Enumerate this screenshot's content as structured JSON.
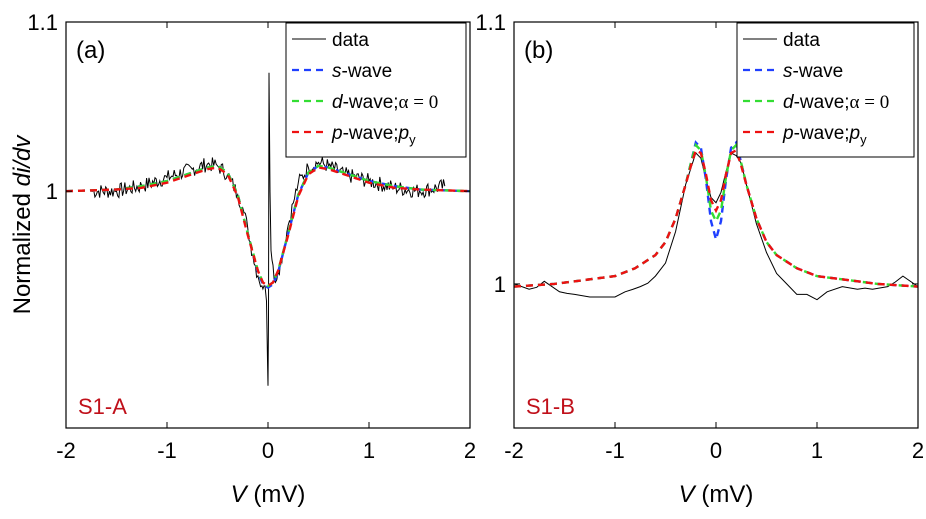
{
  "figure": {
    "ylabel_prefix": "Normalized ",
    "ylabel_italic": "di/dv",
    "colors": {
      "data": "#000000",
      "s_wave": "#1f3fff",
      "d_wave": "#33dd33",
      "p_wave": "#ee1111",
      "sample_tag": "#c0101a"
    }
  },
  "chart_data": [
    {
      "type": "line",
      "panel": "(a)",
      "sample": "S1-A",
      "xlabel_var": "V",
      "xlabel_unit": " (mV)",
      "xlim": [
        -2,
        2
      ],
      "ylim": [
        0.86,
        1.1
      ],
      "x_ticks": [
        "-2",
        "-1",
        "0",
        "1",
        "2"
      ],
      "y_ticks": [
        "1",
        "1.1"
      ],
      "legend": [
        {
          "key": "data",
          "parts": [
            [
              "data",
              "n"
            ]
          ],
          "style": "solid"
        },
        {
          "key": "s_wave",
          "parts": [
            [
              "s",
              "i"
            ],
            [
              "-wave",
              "n"
            ]
          ],
          "style": "dashed"
        },
        {
          "key": "d_wave",
          "parts": [
            [
              "d",
              "i"
            ],
            [
              "-wave;",
              "n"
            ],
            [
              "α = 0",
              "s"
            ]
          ],
          "style": "dashed"
        },
        {
          "key": "p_wave",
          "parts": [
            [
              "p",
              "i"
            ],
            [
              "-wave;",
              "n"
            ],
            [
              "p",
              "i"
            ],
            [
              "y",
              "sub"
            ]
          ],
          "style": "dashed"
        }
      ],
      "series": [
        {
          "name": "data",
          "key": "data",
          "kind": "noisy",
          "x": [
            -1.75,
            -1.5,
            -1.25,
            -1.0,
            -0.75,
            -0.6,
            -0.5,
            -0.4,
            -0.3,
            -0.25,
            -0.2,
            -0.15,
            -0.1,
            -0.06,
            -0.03,
            -0.015,
            -0.005,
            0.0,
            0.005,
            0.01,
            0.02,
            0.03,
            0.06,
            0.1,
            0.15,
            0.2,
            0.25,
            0.3,
            0.4,
            0.5,
            0.6,
            0.75,
            1.0,
            1.25,
            1.5,
            1.75
          ],
          "y": [
            1.0,
            1.0,
            1.003,
            1.008,
            1.013,
            1.016,
            1.015,
            1.01,
            0.998,
            0.99,
            0.978,
            0.962,
            0.95,
            0.944,
            0.944,
            0.935,
            0.9,
            0.885,
            0.925,
            1.07,
            1.0,
            0.965,
            0.948,
            0.952,
            0.965,
            0.98,
            0.993,
            1.005,
            1.014,
            1.017,
            1.015,
            1.01,
            1.006,
            1.002,
            1.0,
            1.003
          ]
        },
        {
          "name": "s-wave",
          "key": "s_wave",
          "x": [
            -2.0,
            -1.5,
            -1.25,
            -1.0,
            -0.8,
            -0.6,
            -0.5,
            -0.4,
            -0.3,
            -0.2,
            -0.1,
            -0.05,
            0.0,
            0.05,
            0.1,
            0.2,
            0.3,
            0.4,
            0.5,
            0.6,
            0.8,
            1.0,
            1.25,
            1.5,
            2.0
          ],
          "y": [
            1.0,
            1.001,
            1.003,
            1.006,
            1.01,
            1.014,
            1.015,
            1.011,
            0.998,
            0.975,
            0.952,
            0.945,
            0.943,
            0.945,
            0.952,
            0.975,
            0.998,
            1.011,
            1.015,
            1.014,
            1.01,
            1.006,
            1.003,
            1.001,
            1.0
          ]
        },
        {
          "name": "d-wave;α = 0",
          "key": "d_wave",
          "x": [
            -2.0,
            -1.5,
            -1.25,
            -1.0,
            -0.8,
            -0.6,
            -0.5,
            -0.4,
            -0.3,
            -0.2,
            -0.1,
            -0.05,
            0.0,
            0.05,
            0.1,
            0.2,
            0.3,
            0.4,
            0.5,
            0.6,
            0.8,
            1.0,
            1.25,
            1.5,
            2.0
          ],
          "y": [
            1.0,
            1.001,
            1.003,
            1.006,
            1.01,
            1.014,
            1.015,
            1.011,
            0.998,
            0.975,
            0.953,
            0.946,
            0.944,
            0.946,
            0.953,
            0.975,
            0.998,
            1.011,
            1.015,
            1.014,
            1.01,
            1.006,
            1.003,
            1.001,
            1.0
          ]
        },
        {
          "name": "p-wave;py",
          "key": "p_wave",
          "x": [
            -2.0,
            -1.5,
            -1.25,
            -1.0,
            -0.8,
            -0.6,
            -0.5,
            -0.4,
            -0.3,
            -0.2,
            -0.1,
            -0.05,
            0.0,
            0.05,
            0.1,
            0.2,
            0.3,
            0.4,
            0.5,
            0.6,
            0.8,
            1.0,
            1.25,
            1.5,
            2.0
          ],
          "y": [
            1.0,
            1.001,
            1.002,
            1.005,
            1.009,
            1.013,
            1.014,
            1.01,
            0.997,
            0.974,
            0.953,
            0.946,
            0.944,
            0.946,
            0.953,
            0.974,
            0.997,
            1.01,
            1.014,
            1.013,
            1.009,
            1.005,
            1.002,
            1.001,
            1.0
          ]
        }
      ]
    },
    {
      "type": "line",
      "panel": "(b)",
      "sample": "S1-B",
      "xlabel_var": "V",
      "xlabel_unit": " (mV)",
      "xlim": [
        -2,
        2
      ],
      "ylim": [
        0.945,
        1.1
      ],
      "x_ticks": [
        "-2",
        "-1",
        "0",
        "1",
        "2"
      ],
      "y_ticks": [
        "1",
        "1.1"
      ],
      "legend": [
        {
          "key": "data",
          "parts": [
            [
              "data",
              "n"
            ]
          ],
          "style": "solid"
        },
        {
          "key": "s_wave",
          "parts": [
            [
              "s",
              "i"
            ],
            [
              "-wave",
              "n"
            ]
          ],
          "style": "dashed"
        },
        {
          "key": "d_wave",
          "parts": [
            [
              "d",
              "i"
            ],
            [
              "-wave;",
              "n"
            ],
            [
              "α = 0",
              "s"
            ]
          ],
          "style": "dashed"
        },
        {
          "key": "p_wave",
          "parts": [
            [
              "p",
              "i"
            ],
            [
              "-wave;",
              "n"
            ],
            [
              "p",
              "i"
            ],
            [
              "y",
              "sub"
            ]
          ],
          "style": "dashed"
        }
      ],
      "series": [
        {
          "name": "data",
          "key": "data",
          "kind": "noisy",
          "x": [
            -2.0,
            -1.85,
            -1.7,
            -1.55,
            -1.4,
            -1.25,
            -1.1,
            -1.0,
            -0.9,
            -0.75,
            -0.6,
            -0.5,
            -0.4,
            -0.3,
            -0.2,
            -0.15,
            -0.1,
            -0.05,
            0.0,
            0.05,
            0.1,
            0.15,
            0.2,
            0.25,
            0.3,
            0.4,
            0.5,
            0.6,
            0.7,
            0.8,
            0.9,
            1.0,
            1.1,
            1.25,
            1.4,
            1.55,
            1.7,
            1.85,
            2.0
          ],
          "y": [
            1.0,
            0.998,
            1.001,
            0.997,
            0.996,
            0.995,
            0.995,
            0.995,
            0.997,
            0.999,
            1.003,
            1.008,
            1.02,
            1.038,
            1.05,
            1.048,
            1.04,
            1.033,
            1.031,
            1.035,
            1.043,
            1.05,
            1.049,
            1.046,
            1.038,
            1.023,
            1.012,
            1.004,
            1.0,
            0.996,
            0.996,
            0.994,
            0.997,
            0.999,
            0.998,
            0.998,
            0.999,
            1.003,
            0.999
          ]
        },
        {
          "name": "s-wave",
          "key": "s_wave",
          "x": [
            -2.0,
            -1.6,
            -1.2,
            -1.0,
            -0.8,
            -0.6,
            -0.5,
            -0.4,
            -0.3,
            -0.25,
            -0.2,
            -0.15,
            -0.1,
            -0.05,
            0.0,
            0.05,
            0.1,
            0.15,
            0.2,
            0.25,
            0.3,
            0.4,
            0.5,
            0.6,
            0.8,
            1.0,
            1.2,
            1.6,
            2.0
          ],
          "y": [
            0.999,
            1.0,
            1.002,
            1.003,
            1.006,
            1.011,
            1.016,
            1.025,
            1.038,
            1.046,
            1.054,
            1.052,
            1.04,
            1.024,
            1.017,
            1.024,
            1.04,
            1.052,
            1.054,
            1.046,
            1.038,
            1.025,
            1.016,
            1.011,
            1.006,
            1.003,
            1.002,
            1.0,
            0.999
          ]
        },
        {
          "name": "d-wave;α = 0",
          "key": "d_wave",
          "x": [
            -2.0,
            -1.6,
            -1.2,
            -1.0,
            -0.8,
            -0.6,
            -0.5,
            -0.4,
            -0.3,
            -0.25,
            -0.2,
            -0.15,
            -0.1,
            -0.05,
            0.0,
            0.05,
            0.1,
            0.15,
            0.2,
            0.25,
            0.3,
            0.4,
            0.5,
            0.6,
            0.8,
            1.0,
            1.2,
            1.6,
            2.0
          ],
          "y": [
            0.999,
            1.0,
            1.002,
            1.003,
            1.006,
            1.011,
            1.016,
            1.025,
            1.038,
            1.046,
            1.053,
            1.051,
            1.041,
            1.028,
            1.024,
            1.028,
            1.041,
            1.051,
            1.053,
            1.046,
            1.038,
            1.025,
            1.016,
            1.011,
            1.006,
            1.003,
            1.002,
            1.0,
            0.999
          ]
        },
        {
          "name": "p-wave;py",
          "key": "p_wave",
          "x": [
            -2.0,
            -1.6,
            -1.2,
            -1.0,
            -0.8,
            -0.6,
            -0.5,
            -0.4,
            -0.3,
            -0.25,
            -0.2,
            -0.15,
            -0.1,
            -0.05,
            0.0,
            0.05,
            0.1,
            0.15,
            0.2,
            0.25,
            0.3,
            0.4,
            0.5,
            0.6,
            0.8,
            1.0,
            1.2,
            1.6,
            2.0
          ],
          "y": [
            0.999,
            1.0,
            1.002,
            1.003,
            1.006,
            1.011,
            1.016,
            1.025,
            1.038,
            1.045,
            1.051,
            1.05,
            1.042,
            1.032,
            1.028,
            1.032,
            1.042,
            1.05,
            1.051,
            1.045,
            1.038,
            1.025,
            1.016,
            1.011,
            1.006,
            1.003,
            1.002,
            1.0,
            0.999
          ]
        }
      ]
    }
  ]
}
